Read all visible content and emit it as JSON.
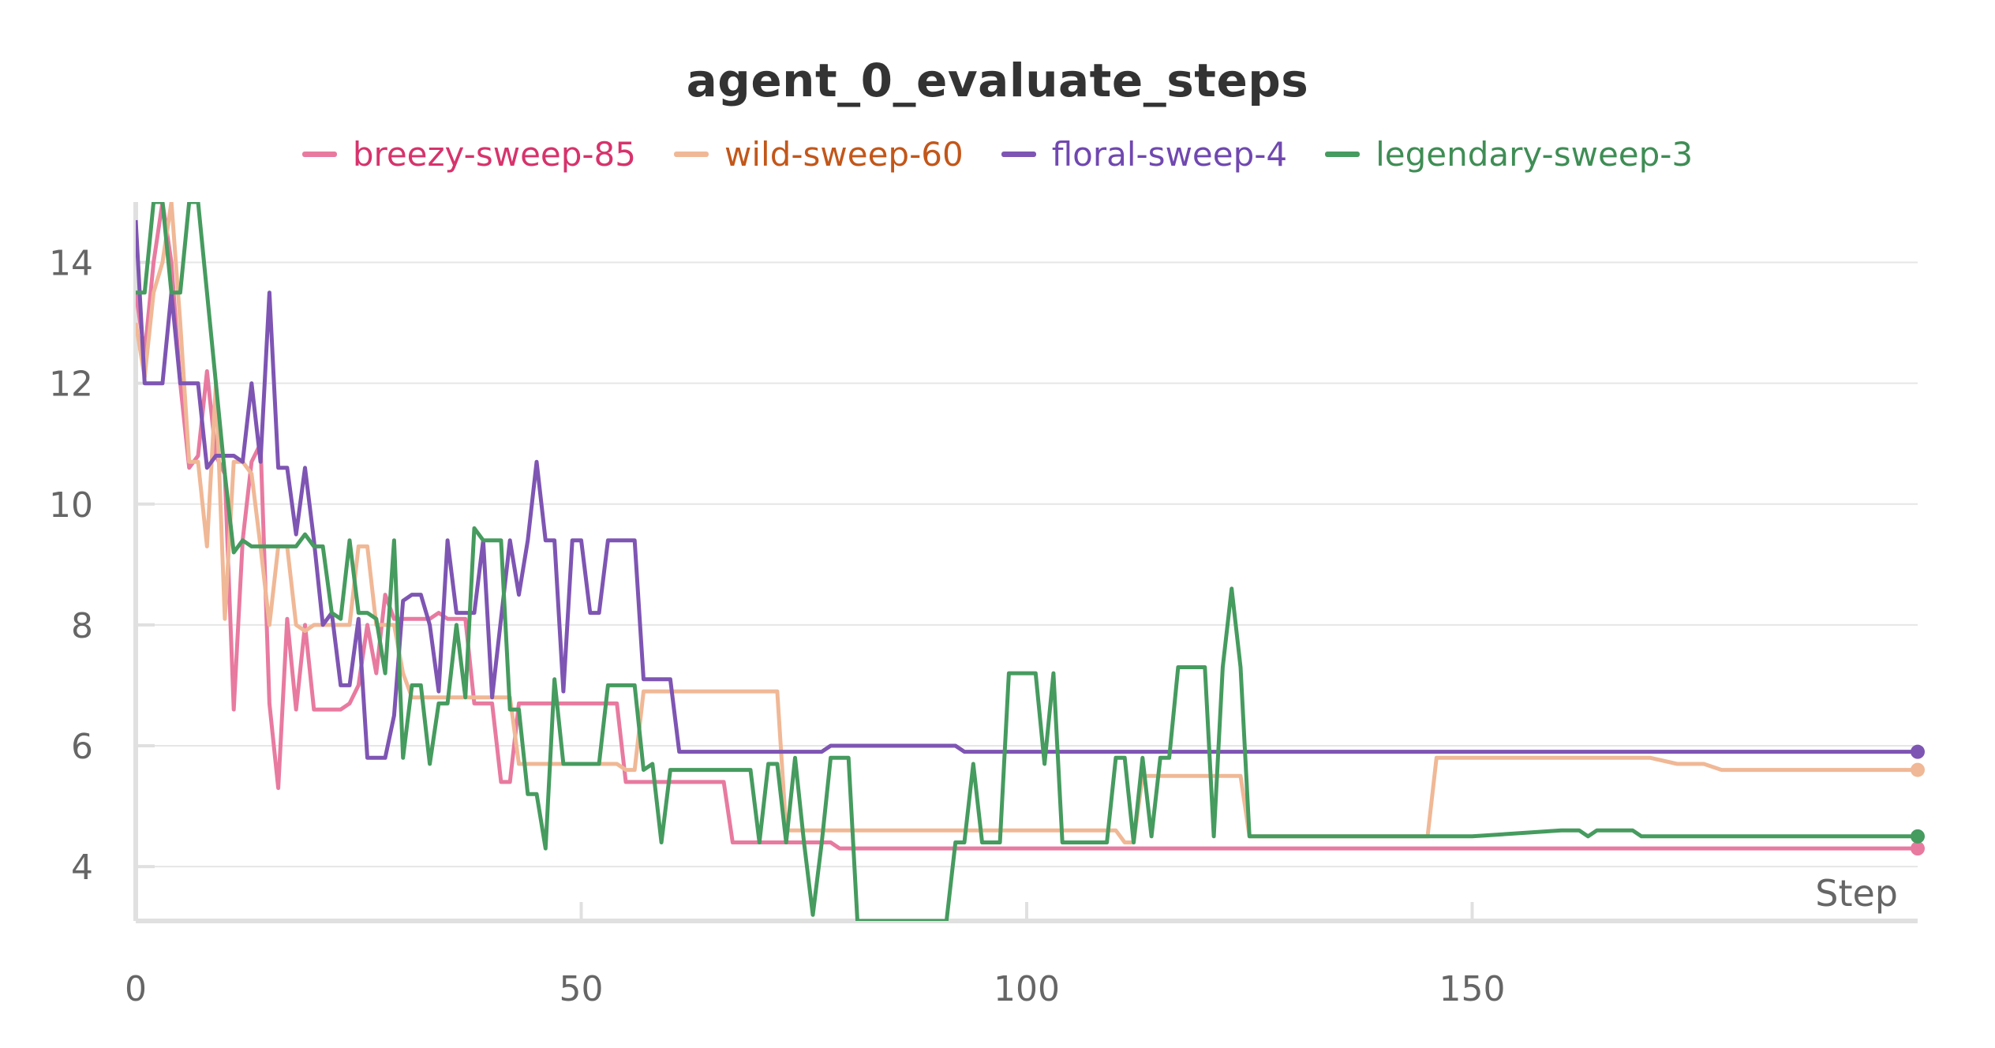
{
  "chart_data": {
    "type": "line",
    "title": "agent_0_evaluate_steps",
    "xlabel": "Step",
    "ylabel": "",
    "xlim": [
      0,
      200
    ],
    "ylim": [
      3.1,
      15
    ],
    "xticks": [
      0,
      50,
      100,
      150
    ],
    "yticks": [
      4,
      6,
      8,
      10,
      12,
      14
    ],
    "grid": true,
    "legend_position": "top-center",
    "series": [
      {
        "name": "breezy-sweep-85",
        "color": "#e87aa0",
        "label_color": "#d6336c",
        "x": [
          0,
          1,
          2,
          3,
          4,
          5,
          6,
          7,
          8,
          9,
          10,
          11,
          12,
          13,
          14,
          15,
          16,
          17,
          18,
          19,
          20,
          21,
          22,
          23,
          24,
          25,
          26,
          27,
          28,
          29,
          30,
          31,
          32,
          33,
          34,
          35,
          36,
          37,
          38,
          39,
          40,
          41,
          42,
          43,
          44,
          45,
          46,
          47,
          48,
          49,
          50,
          51,
          52,
          53,
          54,
          55,
          56,
          57,
          58,
          59,
          60,
          61,
          62,
          63,
          64,
          65,
          66,
          67,
          68,
          69,
          70,
          71,
          72,
          73,
          74,
          75,
          76,
          77,
          78,
          79,
          80,
          200
        ],
        "y": [
          13.5,
          12.5,
          14,
          15,
          14,
          12,
          10.6,
          10.8,
          12.2,
          10.8,
          10.5,
          6.6,
          9.4,
          10.7,
          11,
          6.7,
          5.3,
          8.1,
          6.6,
          8.0,
          6.6,
          6.6,
          6.6,
          6.6,
          6.7,
          7.0,
          8.0,
          7.2,
          8.5,
          8.1,
          8.1,
          8.1,
          8.1,
          8.1,
          8.2,
          8.1,
          8.1,
          8.1,
          6.7,
          6.7,
          6.7,
          5.4,
          5.4,
          6.7,
          6.7,
          6.7,
          6.7,
          6.7,
          6.7,
          6.7,
          6.7,
          6.7,
          6.7,
          6.7,
          6.7,
          5.4,
          5.4,
          5.4,
          5.4,
          5.4,
          5.4,
          5.4,
          5.4,
          5.4,
          5.4,
          5.4,
          5.4,
          4.4,
          4.4,
          4.4,
          4.4,
          4.4,
          4.4,
          4.4,
          4.4,
          4.4,
          4.4,
          4.4,
          4.4,
          4.3,
          4.3,
          4.3
        ]
      },
      {
        "name": "wild-sweep-60",
        "color": "#f0b896",
        "label_color": "#c2571a",
        "x": [
          0,
          1,
          2,
          3,
          4,
          5,
          6,
          7,
          8,
          9,
          10,
          11,
          12,
          13,
          14,
          15,
          16,
          17,
          18,
          19,
          20,
          21,
          22,
          23,
          24,
          25,
          26,
          27,
          28,
          29,
          30,
          31,
          32,
          33,
          34,
          35,
          36,
          37,
          38,
          39,
          40,
          41,
          42,
          43,
          44,
          45,
          46,
          47,
          48,
          49,
          50,
          51,
          52,
          53,
          54,
          55,
          56,
          57,
          58,
          59,
          60,
          61,
          62,
          63,
          64,
          65,
          66,
          67,
          68,
          69,
          70,
          71,
          72,
          73,
          74,
          75,
          76,
          77,
          78,
          79,
          80,
          90,
          100,
          110,
          111,
          112,
          113,
          114,
          115,
          116,
          117,
          118,
          119,
          120,
          121,
          122,
          123,
          124,
          125,
          126,
          127,
          128,
          129,
          130,
          140,
          145,
          146,
          147,
          148,
          150,
          160,
          170,
          173,
          174,
          175,
          176,
          178,
          180,
          190,
          200
        ],
        "y": [
          13.0,
          12.1,
          13.5,
          14.0,
          15,
          13,
          10.7,
          10.7,
          9.3,
          12.0,
          8.1,
          10.7,
          10.7,
          10.5,
          9.3,
          8.0,
          9.3,
          9.3,
          8.0,
          7.9,
          8.0,
          8.0,
          8.0,
          8.0,
          8.0,
          9.3,
          9.3,
          8.0,
          8.0,
          8.0,
          7.2,
          6.8,
          6.8,
          6.8,
          6.8,
          6.8,
          6.8,
          6.8,
          6.8,
          6.8,
          6.8,
          6.8,
          6.8,
          5.7,
          5.7,
          5.7,
          5.7,
          5.7,
          5.7,
          5.7,
          5.7,
          5.7,
          5.7,
          5.7,
          5.7,
          5.6,
          5.6,
          6.9,
          6.9,
          6.9,
          6.9,
          6.9,
          6.9,
          6.9,
          6.9,
          6.9,
          6.9,
          6.9,
          6.9,
          6.9,
          6.9,
          6.9,
          6.9,
          4.6,
          4.6,
          4.6,
          4.6,
          4.6,
          4.6,
          4.6,
          4.6,
          4.6,
          4.6,
          4.6,
          4.4,
          4.4,
          5.5,
          5.5,
          5.5,
          5.5,
          5.5,
          5.5,
          5.5,
          5.5,
          5.5,
          5.5,
          5.5,
          5.5,
          4.5,
          4.5,
          4.5,
          4.5,
          4.5,
          4.5,
          4.5,
          4.5,
          5.8,
          5.8,
          5.8,
          5.8,
          5.8,
          5.8,
          5.7,
          5.7,
          5.7,
          5.7,
          5.6,
          5.6,
          5.6,
          5.6
        ]
      },
      {
        "name": "floral-sweep-4",
        "color": "#7e55b3",
        "label_color": "#7048b0",
        "x": [
          0,
          1,
          2,
          3,
          4,
          5,
          6,
          7,
          8,
          9,
          10,
          11,
          12,
          13,
          14,
          15,
          16,
          17,
          18,
          19,
          20,
          21,
          22,
          23,
          24,
          25,
          26,
          27,
          28,
          29,
          30,
          31,
          32,
          33,
          34,
          35,
          36,
          37,
          38,
          39,
          40,
          41,
          42,
          43,
          44,
          45,
          46,
          47,
          48,
          49,
          50,
          51,
          52,
          53,
          54,
          55,
          56,
          57,
          58,
          59,
          60,
          61,
          62,
          63,
          64,
          65,
          66,
          67,
          68,
          69,
          70,
          71,
          72,
          73,
          74,
          75,
          76,
          77,
          78,
          79,
          80,
          90,
          92,
          93,
          94,
          200
        ],
        "y": [
          14.7,
          12,
          12,
          12,
          13.5,
          12,
          12,
          12,
          10.6,
          10.8,
          10.8,
          10.8,
          10.7,
          12.0,
          10.7,
          13.5,
          10.6,
          10.6,
          9.5,
          10.6,
          9.4,
          8.0,
          8.2,
          7.0,
          7.0,
          8.1,
          5.8,
          5.8,
          5.8,
          6.5,
          8.4,
          8.5,
          8.5,
          8.0,
          6.9,
          9.4,
          8.2,
          8.2,
          8.2,
          9.4,
          6.8,
          8.1,
          9.4,
          8.5,
          9.4,
          10.7,
          9.4,
          9.4,
          6.9,
          9.4,
          9.4,
          8.2,
          8.2,
          9.4,
          9.4,
          9.4,
          9.4,
          7.1,
          7.1,
          7.1,
          7.1,
          5.9,
          5.9,
          5.9,
          5.9,
          5.9,
          5.9,
          5.9,
          5.9,
          5.9,
          5.9,
          5.9,
          5.9,
          5.9,
          5.9,
          5.9,
          5.9,
          5.9,
          6.0,
          6.0,
          6.0,
          6.0,
          6.0,
          5.9,
          5.9,
          5.9
        ]
      },
      {
        "name": "legendary-sweep-3",
        "color": "#469b5f",
        "label_color": "#3f8d55",
        "x": [
          0,
          1,
          2,
          3,
          4,
          5,
          6,
          7,
          8,
          9,
          10,
          11,
          12,
          13,
          14,
          15,
          16,
          17,
          18,
          19,
          20,
          21,
          22,
          23,
          24,
          25,
          26,
          27,
          28,
          29,
          30,
          31,
          32,
          33,
          34,
          35,
          36,
          37,
          38,
          39,
          40,
          41,
          42,
          43,
          44,
          45,
          46,
          47,
          48,
          49,
          50,
          51,
          52,
          53,
          54,
          55,
          56,
          57,
          58,
          59,
          60,
          61,
          62,
          63,
          64,
          65,
          66,
          67,
          68,
          69,
          70,
          71,
          72,
          73,
          74,
          75,
          76,
          77,
          78,
          79,
          80,
          81,
          91,
          92,
          93,
          94,
          95,
          96,
          97,
          98,
          99,
          100,
          101,
          102,
          103,
          104,
          105,
          106,
          107,
          108,
          109,
          110,
          111,
          112,
          113,
          114,
          115,
          116,
          117,
          118,
          119,
          120,
          121,
          122,
          123,
          124,
          125,
          126,
          127,
          128,
          129,
          130,
          140,
          150,
          160,
          161,
          162,
          163,
          164,
          165,
          166,
          167,
          168,
          169,
          170,
          180,
          190,
          200
        ],
        "y": [
          13.5,
          13.5,
          15,
          15,
          13.5,
          13.5,
          15,
          15,
          13.5,
          12,
          10.5,
          9.2,
          9.4,
          9.3,
          9.3,
          9.3,
          9.3,
          9.3,
          9.3,
          9.5,
          9.3,
          9.3,
          8.2,
          8.1,
          9.4,
          8.2,
          8.2,
          8.1,
          7.2,
          9.4,
          5.8,
          7.0,
          7.0,
          5.7,
          6.7,
          6.7,
          8.0,
          6.8,
          9.6,
          9.4,
          9.4,
          9.4,
          6.6,
          6.6,
          5.2,
          5.2,
          4.3,
          7.1,
          5.7,
          5.7,
          5.7,
          5.7,
          5.7,
          7.0,
          7.0,
          7.0,
          7.0,
          5.6,
          5.7,
          4.4,
          5.6,
          5.6,
          5.6,
          5.6,
          5.6,
          5.6,
          5.6,
          5.6,
          5.6,
          5.6,
          4.4,
          5.7,
          5.7,
          4.4,
          5.8,
          4.4,
          3.2,
          4.4,
          5.8,
          5.8,
          5.8,
          3.1,
          3.1,
          4.4,
          4.4,
          5.7,
          4.4,
          4.4,
          4.4,
          7.2,
          7.2,
          7.2,
          7.2,
          5.7,
          7.2,
          4.4,
          4.4,
          4.4,
          4.4,
          4.4,
          4.4,
          5.8,
          5.8,
          4.4,
          5.8,
          4.5,
          5.8,
          5.8,
          7.3,
          7.3,
          7.3,
          7.3,
          4.5,
          7.3,
          8.6,
          7.3,
          4.5,
          4.5,
          4.5,
          4.5,
          4.5,
          4.5,
          4.5,
          4.5,
          4.6,
          4.6,
          4.6,
          4.5,
          4.6,
          4.6,
          4.6,
          4.6,
          4.6,
          4.5,
          4.5,
          4.5,
          4.5,
          4.5
        ]
      }
    ]
  }
}
